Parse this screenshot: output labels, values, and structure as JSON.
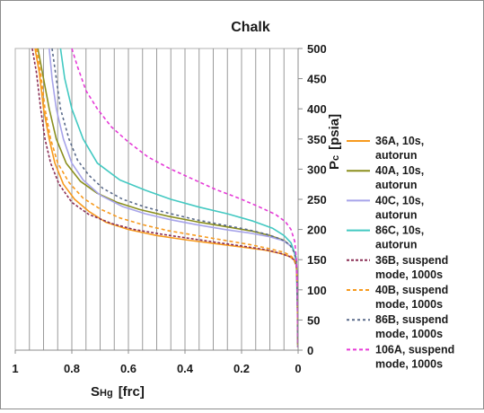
{
  "chart_data": {
    "type": "line",
    "title": "Chalk",
    "xlabel": "S",
    "xlabel_sub": "Hg",
    "xlabel_unit": "[frc]",
    "ylabel": "P",
    "ylabel_sub": "c",
    "ylabel_unit": "[psia]",
    "x_reversed": true,
    "xlim": [
      1,
      0
    ],
    "ylim": [
      0,
      500
    ],
    "x_ticks": [
      "1",
      "0.8",
      "0.6",
      "0.4",
      "0.2",
      "0"
    ],
    "y_ticks": [
      "0",
      "50",
      "100",
      "150",
      "200",
      "250",
      "300",
      "350",
      "400",
      "450",
      "500"
    ],
    "grid": "vertical",
    "legend_position": "right",
    "series": [
      {
        "name": "36A, 10s, autorun",
        "color": "#f79a1e",
        "dash": "solid",
        "points": [
          [
            0.93,
            500
          ],
          [
            0.915,
            460
          ],
          [
            0.9,
            400
          ],
          [
            0.88,
            350
          ],
          [
            0.86,
            310
          ],
          [
            0.83,
            275
          ],
          [
            0.79,
            250
          ],
          [
            0.74,
            230
          ],
          [
            0.68,
            212
          ],
          [
            0.6,
            200
          ],
          [
            0.5,
            190
          ],
          [
            0.4,
            183
          ],
          [
            0.3,
            177
          ],
          [
            0.2,
            171
          ],
          [
            0.12,
            166
          ],
          [
            0.06,
            160
          ],
          [
            0.03,
            155
          ],
          [
            0.015,
            150
          ],
          [
            0.006,
            140
          ],
          [
            0.003,
            100
          ],
          [
            0.002,
            50
          ],
          [
            0.001,
            5
          ]
        ]
      },
      {
        "name": "40A, 10s, autorun",
        "color": "#8b8f1e",
        "dash": "solid",
        "points": [
          [
            0.92,
            500
          ],
          [
            0.9,
            450
          ],
          [
            0.88,
            400
          ],
          [
            0.855,
            350
          ],
          [
            0.82,
            310
          ],
          [
            0.77,
            280
          ],
          [
            0.71,
            260
          ],
          [
            0.64,
            245
          ],
          [
            0.56,
            233
          ],
          [
            0.46,
            222
          ],
          [
            0.36,
            213
          ],
          [
            0.26,
            205
          ],
          [
            0.16,
            197
          ],
          [
            0.1,
            190
          ],
          [
            0.05,
            182
          ],
          [
            0.02,
            170
          ],
          [
            0.008,
            155
          ],
          [
            0.004,
            130
          ],
          [
            0.003,
            100
          ],
          [
            0.002,
            50
          ],
          [
            0.001,
            5
          ]
        ]
      },
      {
        "name": "40C, 10s, autorun",
        "color": "#a7a4ea",
        "dash": "solid",
        "points": [
          [
            0.88,
            500
          ],
          [
            0.87,
            450
          ],
          [
            0.855,
            400
          ],
          [
            0.83,
            350
          ],
          [
            0.8,
            310
          ],
          [
            0.76,
            282
          ],
          [
            0.7,
            257
          ],
          [
            0.62,
            238
          ],
          [
            0.54,
            226
          ],
          [
            0.45,
            216
          ],
          [
            0.36,
            208
          ],
          [
            0.26,
            200
          ],
          [
            0.17,
            194
          ],
          [
            0.1,
            188
          ],
          [
            0.05,
            181
          ],
          [
            0.02,
            170
          ],
          [
            0.008,
            155
          ],
          [
            0.004,
            130
          ],
          [
            0.003,
            100
          ],
          [
            0.002,
            50
          ],
          [
            0.001,
            5
          ]
        ]
      },
      {
        "name": "86C, 10s, autorun",
        "color": "#43c9c2",
        "dash": "solid",
        "points": [
          [
            0.84,
            500
          ],
          [
            0.825,
            450
          ],
          [
            0.8,
            400
          ],
          [
            0.76,
            350
          ],
          [
            0.71,
            310
          ],
          [
            0.63,
            282
          ],
          [
            0.54,
            265
          ],
          [
            0.45,
            250
          ],
          [
            0.35,
            237
          ],
          [
            0.25,
            226
          ],
          [
            0.16,
            214
          ],
          [
            0.09,
            202
          ],
          [
            0.05,
            190
          ],
          [
            0.025,
            178
          ],
          [
            0.012,
            160
          ],
          [
            0.006,
            140
          ],
          [
            0.004,
            100
          ],
          [
            0.002,
            50
          ],
          [
            0.001,
            5
          ]
        ]
      },
      {
        "name": "36B, suspend mode, 1000s",
        "color": "#8a2e55",
        "dash": "3 2",
        "points": [
          [
            0.94,
            500
          ],
          [
            0.925,
            460
          ],
          [
            0.91,
            400
          ],
          [
            0.895,
            350
          ],
          [
            0.875,
            310
          ],
          [
            0.845,
            275
          ],
          [
            0.8,
            245
          ],
          [
            0.74,
            225
          ],
          [
            0.66,
            210
          ],
          [
            0.58,
            200
          ],
          [
            0.48,
            192
          ],
          [
            0.38,
            185
          ],
          [
            0.28,
            178
          ],
          [
            0.19,
            172
          ],
          [
            0.11,
            166
          ],
          [
            0.06,
            160
          ],
          [
            0.03,
            155
          ],
          [
            0.015,
            150
          ],
          [
            0.006,
            140
          ],
          [
            0.003,
            100
          ],
          [
            0.002,
            50
          ],
          [
            0.001,
            5
          ]
        ]
      },
      {
        "name": "40B, suspend mode, 1000s",
        "color": "#f79a1e",
        "dash": "4 3",
        "points": [
          [
            0.925,
            500
          ],
          [
            0.91,
            460
          ],
          [
            0.895,
            400
          ],
          [
            0.875,
            350
          ],
          [
            0.85,
            310
          ],
          [
            0.81,
            278
          ],
          [
            0.76,
            252
          ],
          [
            0.7,
            234
          ],
          [
            0.63,
            219
          ],
          [
            0.55,
            208
          ],
          [
            0.46,
            198
          ],
          [
            0.36,
            190
          ],
          [
            0.26,
            182
          ],
          [
            0.17,
            175
          ],
          [
            0.1,
            168
          ],
          [
            0.05,
            162
          ],
          [
            0.025,
            156
          ],
          [
            0.012,
            150
          ],
          [
            0.006,
            140
          ],
          [
            0.003,
            100
          ],
          [
            0.002,
            50
          ],
          [
            0.001,
            5
          ]
        ]
      },
      {
        "name": "86B, suspend mode, 1000s",
        "color": "#5a6a8a",
        "dash": "3 3",
        "points": [
          [
            0.87,
            500
          ],
          [
            0.855,
            450
          ],
          [
            0.84,
            400
          ],
          [
            0.81,
            350
          ],
          [
            0.78,
            315
          ],
          [
            0.74,
            290
          ],
          [
            0.69,
            268
          ],
          [
            0.62,
            250
          ],
          [
            0.54,
            237
          ],
          [
            0.45,
            226
          ],
          [
            0.36,
            216
          ],
          [
            0.27,
            208
          ],
          [
            0.18,
            200
          ],
          [
            0.11,
            192
          ],
          [
            0.06,
            184
          ],
          [
            0.03,
            175
          ],
          [
            0.015,
            163
          ],
          [
            0.007,
            150
          ],
          [
            0.004,
            120
          ],
          [
            0.002,
            50
          ],
          [
            0.001,
            5
          ]
        ]
      },
      {
        "name": "106A, suspend mode, 1000s",
        "color": "#e63ad7",
        "dash": "4 3",
        "points": [
          [
            0.8,
            500
          ],
          [
            0.78,
            470
          ],
          [
            0.75,
            430
          ],
          [
            0.71,
            400
          ],
          [
            0.66,
            370
          ],
          [
            0.6,
            345
          ],
          [
            0.53,
            320
          ],
          [
            0.45,
            300
          ],
          [
            0.37,
            283
          ],
          [
            0.29,
            266
          ],
          [
            0.21,
            252
          ],
          [
            0.14,
            238
          ],
          [
            0.08,
            225
          ],
          [
            0.045,
            213
          ],
          [
            0.025,
            200
          ],
          [
            0.012,
            180
          ],
          [
            0.006,
            150
          ],
          [
            0.003,
            100
          ],
          [
            0.002,
            50
          ],
          [
            0.001,
            5
          ]
        ]
      }
    ]
  }
}
